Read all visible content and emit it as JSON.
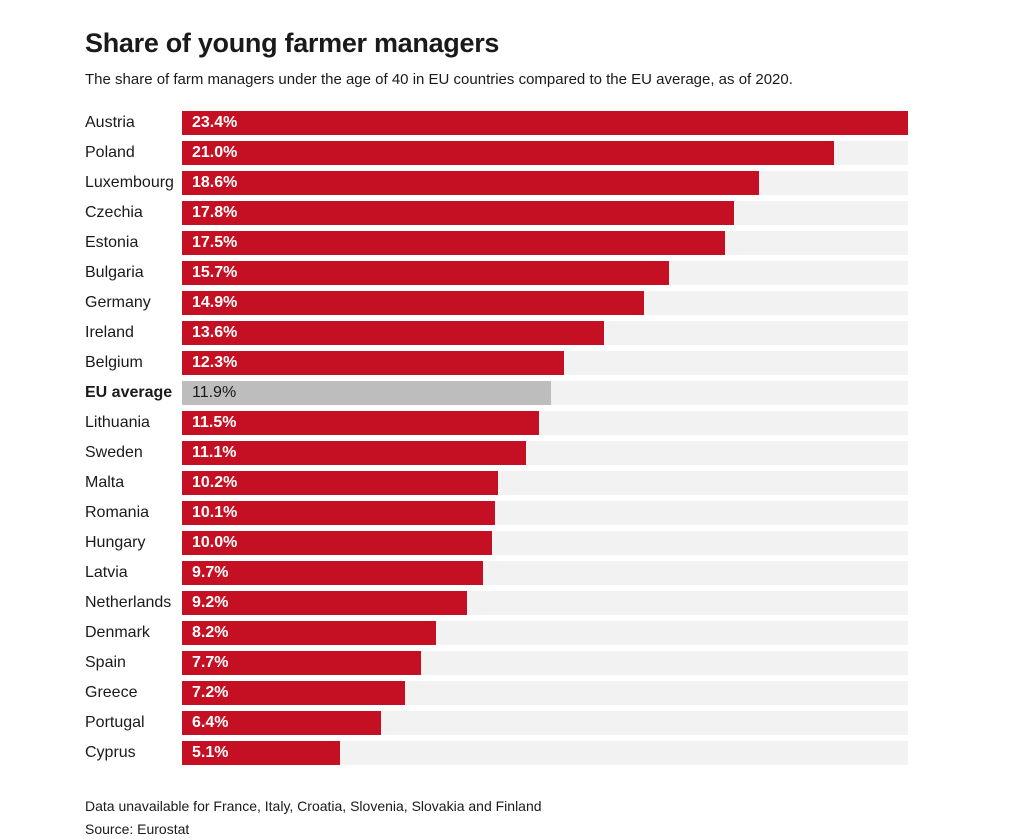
{
  "header": {
    "title": "Share of young farmer managers",
    "subtitle": "The share of farm managers under the age of 40 in EU countries compared to the EU average, as of 2020."
  },
  "chart_data": {
    "type": "bar",
    "orientation": "horizontal",
    "title": "Share of young farmer managers",
    "categories": [
      "Austria",
      "Poland",
      "Luxembourg",
      "Czechia",
      "Estonia",
      "Bulgaria",
      "Germany",
      "Ireland",
      "Belgium",
      "EU average",
      "Lithuania",
      "Sweden",
      "Malta",
      "Romania",
      "Hungary",
      "Latvia",
      "Netherlands",
      "Denmark",
      "Spain",
      "Greece",
      "Portugal",
      "Cyprus"
    ],
    "values": [
      23.4,
      21.0,
      18.6,
      17.8,
      17.5,
      15.7,
      14.9,
      13.6,
      12.3,
      11.9,
      11.5,
      11.1,
      10.2,
      10.1,
      10.0,
      9.7,
      9.2,
      8.2,
      7.7,
      7.2,
      6.4,
      5.1
    ],
    "value_labels": [
      "23.4%",
      "21.0%",
      "18.6%",
      "17.8%",
      "17.5%",
      "15.7%",
      "14.9%",
      "13.6%",
      "12.3%",
      "11.9%",
      "11.5%",
      "11.1%",
      "10.2%",
      "10.1%",
      "10.0%",
      "9.7%",
      "9.2%",
      "8.2%",
      "7.7%",
      "7.2%",
      "6.4%",
      "5.1%"
    ],
    "highlight_category": "EU average",
    "xlim": [
      0,
      23.4
    ],
    "grid": false,
    "legend_position": "none",
    "colors": {
      "bar": "#c50f22",
      "highlight_bar": "#bdbdbd",
      "track": "#f2f2f2",
      "value_text": "#ffffff",
      "highlight_value_text": "#1a1a1a"
    }
  },
  "footer": {
    "note": "Data unavailable for France, Italy, Croatia, Slovenia, Slovakia and Finland",
    "source": "Source: Eurostat"
  }
}
